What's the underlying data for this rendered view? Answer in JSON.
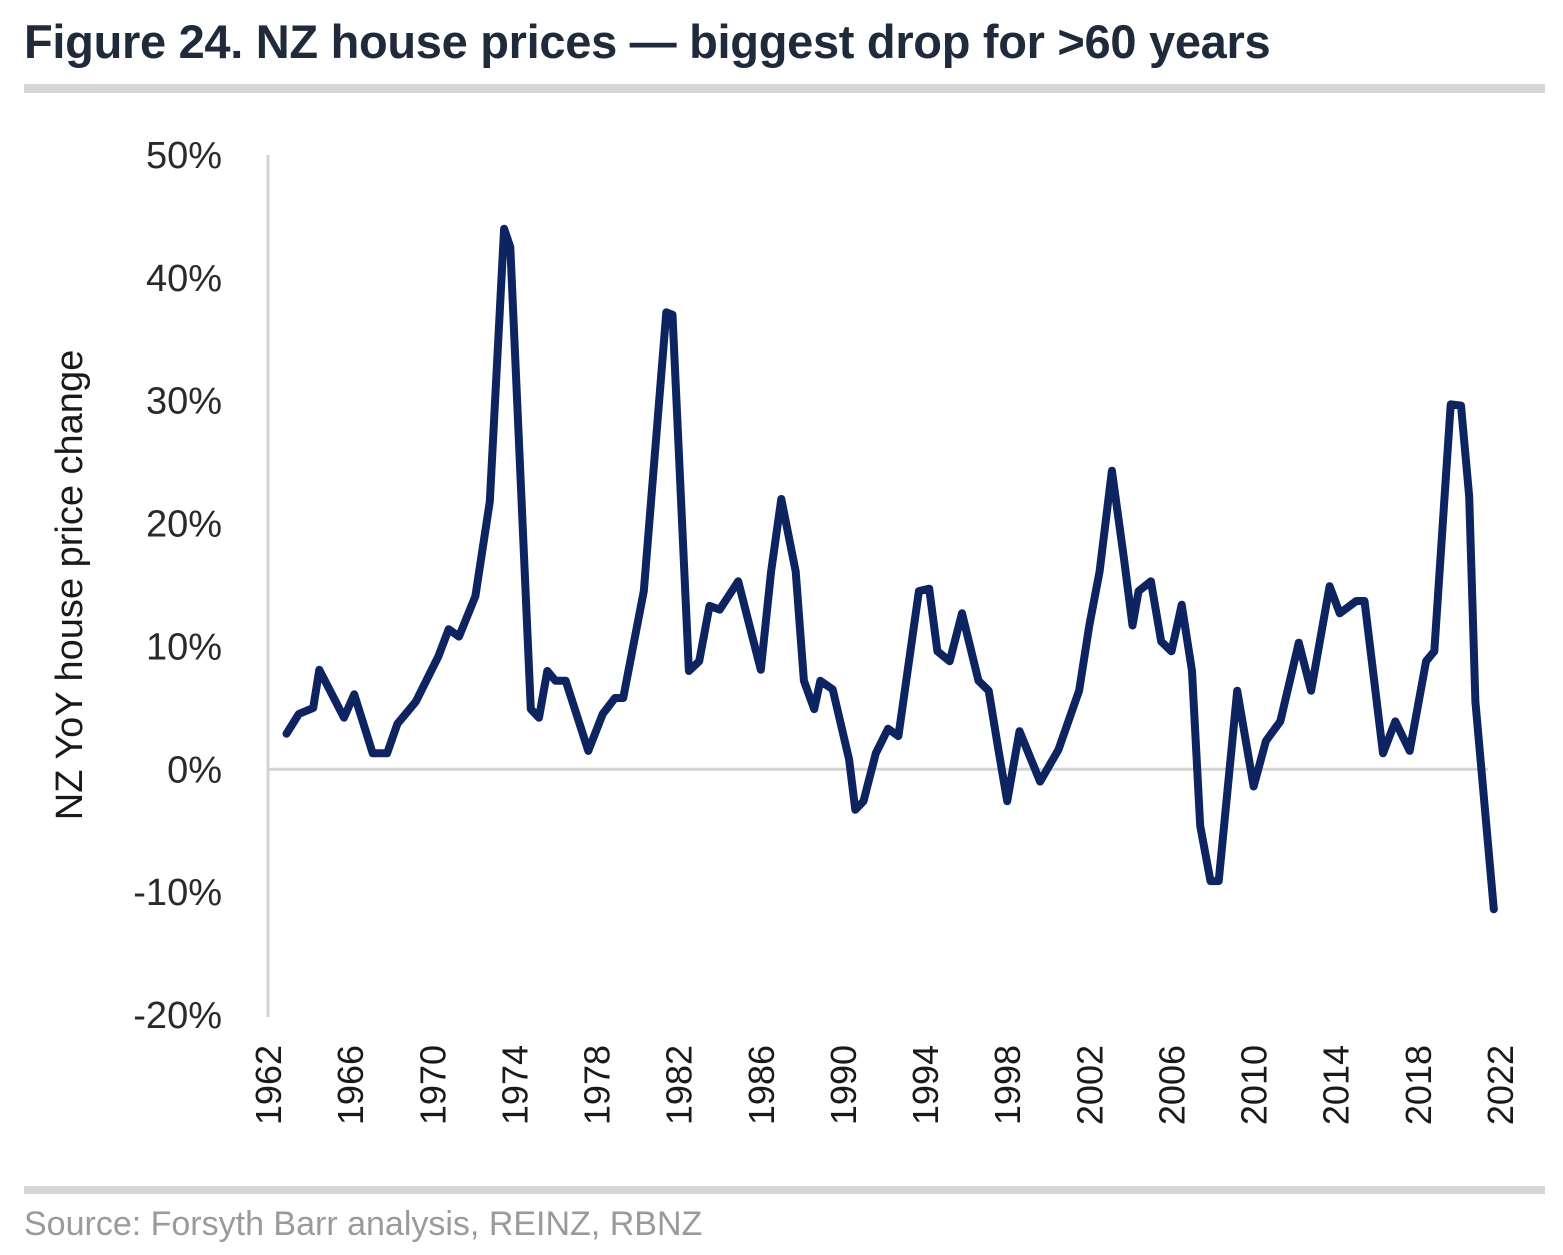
{
  "header": {
    "title": "Figure 24. NZ house prices — biggest drop for >60 years"
  },
  "footer": {
    "source": "Source: Forsyth Barr analysis, REINZ, RBNZ"
  },
  "colors": {
    "series_line": "#0d2461",
    "rule": "#d6d6d8",
    "gridline": "#d4d4d4",
    "title_text": "#1f2a3a",
    "source_text": "#9a9a9a"
  },
  "chart_data": {
    "type": "line",
    "title": "Figure 24. NZ house prices — biggest drop for >60 years",
    "xlabel": "",
    "ylabel": "NZ YoY house price change",
    "xlim": [
      1962,
      2022
    ],
    "ylim": [
      -20,
      50
    ],
    "x_ticks": [
      "1962",
      "1966",
      "1970",
      "1974",
      "1978",
      "1982",
      "1986",
      "1990",
      "1994",
      "1998",
      "2002",
      "2006",
      "2010",
      "2014",
      "2018",
      "2022"
    ],
    "y_ticks": [
      "50%",
      "40%",
      "30%",
      "20%",
      "10%",
      "0%",
      "-10%",
      "-20%"
    ],
    "y_tick_values": [
      50,
      40,
      30,
      20,
      10,
      0,
      -10,
      -20
    ],
    "grid": false,
    "zero_line": true,
    "legend": "none",
    "series": [
      {
        "name": "NZ YoY house price change",
        "x": [
          1962.9,
          1963.5,
          1964.2,
          1964.5,
          1965.7,
          1966.2,
          1967.1,
          1967.8,
          1968.3,
          1969.2,
          1970.3,
          1970.8,
          1971.3,
          1972.1,
          1972.8,
          1973.5,
          1973.8,
          1974.8,
          1975.2,
          1975.6,
          1976.0,
          1976.5,
          1977.6,
          1978.3,
          1978.9,
          1979.3,
          1980.3,
          1981.4,
          1981.7,
          1982.5,
          1983.0,
          1983.5,
          1984.0,
          1984.9,
          1986.0,
          1986.5,
          1987.0,
          1987.7,
          1988.1,
          1988.6,
          1988.9,
          1989.5,
          1990.3,
          1990.6,
          1991.0,
          1991.6,
          1992.2,
          1992.7,
          1993.7,
          1994.2,
          1994.6,
          1995.2,
          1995.8,
          1996.6,
          1997.1,
          1997.6,
          1998.0,
          1998.6,
          1999.6,
          2000.5,
          2001.5,
          2002.0,
          2002.5,
          2003.1,
          2003.7,
          2004.1,
          2004.4,
          2005.0,
          2005.5,
          2006.0,
          2006.5,
          2007.0,
          2007.4,
          2007.9,
          2008.3,
          2009.2,
          2010.0,
          2010.6,
          2011.3,
          2012.2,
          2012.8,
          2013.7,
          2014.2,
          2015.0,
          2015.4,
          2016.3,
          2016.9,
          2017.6,
          2018.4,
          2018.8,
          2019.6,
          2020.1,
          2020.5,
          2020.8,
          2021.7
        ],
        "values": [
          2.9,
          4.5,
          5.0,
          8.1,
          4.2,
          6.1,
          1.3,
          1.3,
          3.7,
          5.5,
          9.2,
          11.4,
          10.8,
          14.1,
          21.8,
          44.0,
          42.5,
          4.9,
          4.2,
          8.0,
          7.2,
          7.2,
          1.5,
          4.5,
          5.8,
          5.8,
          14.5,
          37.2,
          37.0,
          8.0,
          8.8,
          13.3,
          13.0,
          15.3,
          8.1,
          16.1,
          22.0,
          16.1,
          7.2,
          4.9,
          7.2,
          6.5,
          0.8,
          -3.3,
          -2.6,
          1.3,
          3.3,
          2.7,
          14.5,
          14.7,
          9.6,
          8.8,
          12.7,
          7.2,
          6.4,
          1.3,
          -2.6,
          3.1,
          -1.0,
          1.6,
          6.4,
          11.7,
          16.1,
          24.3,
          17.0,
          11.7,
          14.5,
          15.3,
          10.4,
          9.6,
          13.4,
          8.0,
          -4.6,
          -9.1,
          -9.1,
          6.4,
          -1.4,
          2.3,
          3.9,
          10.3,
          6.4,
          14.9,
          12.7,
          13.7,
          13.7,
          1.3,
          3.9,
          1.5,
          8.8,
          9.6,
          29.7,
          29.6,
          22.2,
          5.5,
          -11.4
        ]
      }
    ]
  }
}
